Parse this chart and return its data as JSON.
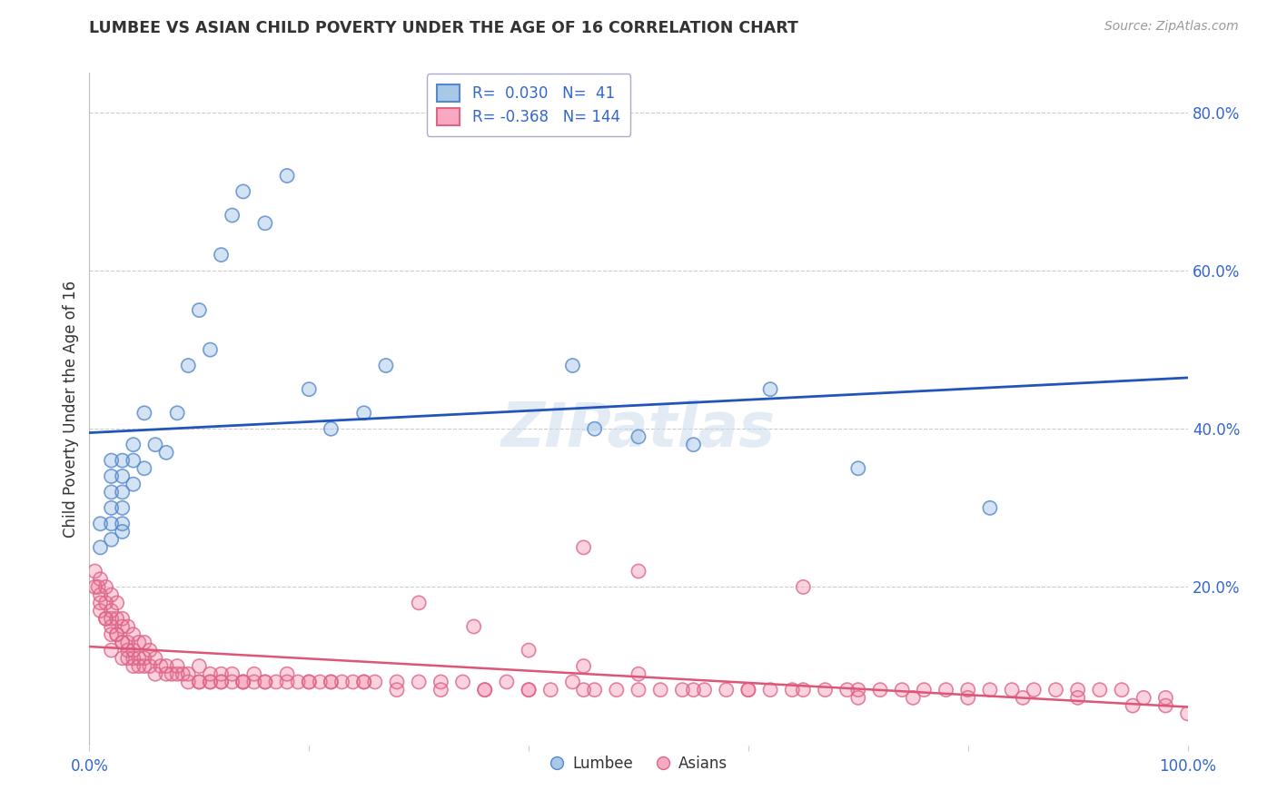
{
  "title": "LUMBEE VS ASIAN CHILD POVERTY UNDER THE AGE OF 16 CORRELATION CHART",
  "source": "Source: ZipAtlas.com",
  "ylabel": "Child Poverty Under the Age of 16",
  "watermark": "ZIPatlas",
  "legend_lumbee_R": 0.03,
  "legend_lumbee_N": 41,
  "legend_asian_R": -0.368,
  "legend_asian_N": 144,
  "xlim": [
    0.0,
    1.0
  ],
  "ylim": [
    0.0,
    0.85
  ],
  "blue_color": "#A8C8E8",
  "blue_edge_color": "#5588CC",
  "pink_color": "#F8A8C0",
  "pink_edge_color": "#DD6688",
  "blue_line_color": "#2255BB",
  "pink_line_color": "#DD5577",
  "grid_color": "#CCCCCC",
  "background_color": "#FFFFFF",
  "lumbee_x": [
    0.01,
    0.01,
    0.02,
    0.02,
    0.02,
    0.02,
    0.02,
    0.02,
    0.03,
    0.03,
    0.03,
    0.03,
    0.03,
    0.03,
    0.04,
    0.04,
    0.04,
    0.05,
    0.05,
    0.06,
    0.07,
    0.08,
    0.09,
    0.1,
    0.11,
    0.12,
    0.13,
    0.14,
    0.16,
    0.18,
    0.2,
    0.22,
    0.25,
    0.27,
    0.44,
    0.46,
    0.5,
    0.55,
    0.62,
    0.7,
    0.82
  ],
  "lumbee_y": [
    0.25,
    0.28,
    0.26,
    0.28,
    0.3,
    0.32,
    0.34,
    0.36,
    0.27,
    0.28,
    0.3,
    0.32,
    0.34,
    0.36,
    0.33,
    0.36,
    0.38,
    0.35,
    0.42,
    0.38,
    0.37,
    0.42,
    0.48,
    0.55,
    0.5,
    0.62,
    0.67,
    0.7,
    0.66,
    0.72,
    0.45,
    0.4,
    0.42,
    0.48,
    0.48,
    0.4,
    0.39,
    0.38,
    0.45,
    0.35,
    0.3
  ],
  "asian_x": [
    0.005,
    0.008,
    0.01,
    0.01,
    0.01,
    0.015,
    0.015,
    0.015,
    0.02,
    0.02,
    0.02,
    0.02,
    0.02,
    0.025,
    0.025,
    0.025,
    0.03,
    0.03,
    0.03,
    0.03,
    0.035,
    0.035,
    0.035,
    0.04,
    0.04,
    0.04,
    0.045,
    0.045,
    0.05,
    0.05,
    0.055,
    0.055,
    0.06,
    0.065,
    0.07,
    0.075,
    0.08,
    0.085,
    0.09,
    0.1,
    0.1,
    0.11,
    0.11,
    0.12,
    0.12,
    0.13,
    0.13,
    0.14,
    0.14,
    0.15,
    0.15,
    0.16,
    0.17,
    0.18,
    0.19,
    0.2,
    0.21,
    0.22,
    0.23,
    0.24,
    0.25,
    0.26,
    0.28,
    0.3,
    0.32,
    0.34,
    0.36,
    0.38,
    0.4,
    0.42,
    0.44,
    0.45,
    0.46,
    0.48,
    0.5,
    0.52,
    0.54,
    0.56,
    0.58,
    0.6,
    0.62,
    0.64,
    0.65,
    0.67,
    0.69,
    0.7,
    0.72,
    0.74,
    0.76,
    0.78,
    0.8,
    0.82,
    0.84,
    0.86,
    0.88,
    0.9,
    0.92,
    0.94,
    0.96,
    0.98,
    0.005,
    0.01,
    0.015,
    0.02,
    0.025,
    0.03,
    0.035,
    0.04,
    0.045,
    0.05,
    0.06,
    0.07,
    0.08,
    0.09,
    0.1,
    0.11,
    0.12,
    0.14,
    0.16,
    0.18,
    0.2,
    0.22,
    0.25,
    0.28,
    0.32,
    0.36,
    0.4,
    0.45,
    0.5,
    0.55,
    0.6,
    0.65,
    0.7,
    0.75,
    0.8,
    0.85,
    0.9,
    0.95,
    0.98,
    1.0,
    0.3,
    0.35,
    0.4,
    0.45,
    0.5
  ],
  "asian_y": [
    0.22,
    0.2,
    0.21,
    0.19,
    0.17,
    0.2,
    0.18,
    0.16,
    0.19,
    0.17,
    0.16,
    0.14,
    0.12,
    0.18,
    0.16,
    0.14,
    0.16,
    0.15,
    0.13,
    0.11,
    0.15,
    0.13,
    0.11,
    0.14,
    0.12,
    0.1,
    0.13,
    0.11,
    0.13,
    0.11,
    0.12,
    0.1,
    0.11,
    0.1,
    0.1,
    0.09,
    0.1,
    0.09,
    0.09,
    0.1,
    0.08,
    0.09,
    0.08,
    0.09,
    0.08,
    0.08,
    0.09,
    0.08,
    0.08,
    0.08,
    0.09,
    0.08,
    0.08,
    0.09,
    0.08,
    0.08,
    0.08,
    0.08,
    0.08,
    0.08,
    0.08,
    0.08,
    0.08,
    0.08,
    0.08,
    0.08,
    0.07,
    0.08,
    0.07,
    0.07,
    0.08,
    0.25,
    0.07,
    0.07,
    0.22,
    0.07,
    0.07,
    0.07,
    0.07,
    0.07,
    0.07,
    0.07,
    0.2,
    0.07,
    0.07,
    0.07,
    0.07,
    0.07,
    0.07,
    0.07,
    0.07,
    0.07,
    0.07,
    0.07,
    0.07,
    0.07,
    0.07,
    0.07,
    0.06,
    0.06,
    0.2,
    0.18,
    0.16,
    0.15,
    0.14,
    0.13,
    0.12,
    0.11,
    0.1,
    0.1,
    0.09,
    0.09,
    0.09,
    0.08,
    0.08,
    0.08,
    0.08,
    0.08,
    0.08,
    0.08,
    0.08,
    0.08,
    0.08,
    0.07,
    0.07,
    0.07,
    0.07,
    0.07,
    0.07,
    0.07,
    0.07,
    0.07,
    0.06,
    0.06,
    0.06,
    0.06,
    0.06,
    0.05,
    0.05,
    0.04,
    0.18,
    0.15,
    0.12,
    0.1,
    0.09
  ]
}
